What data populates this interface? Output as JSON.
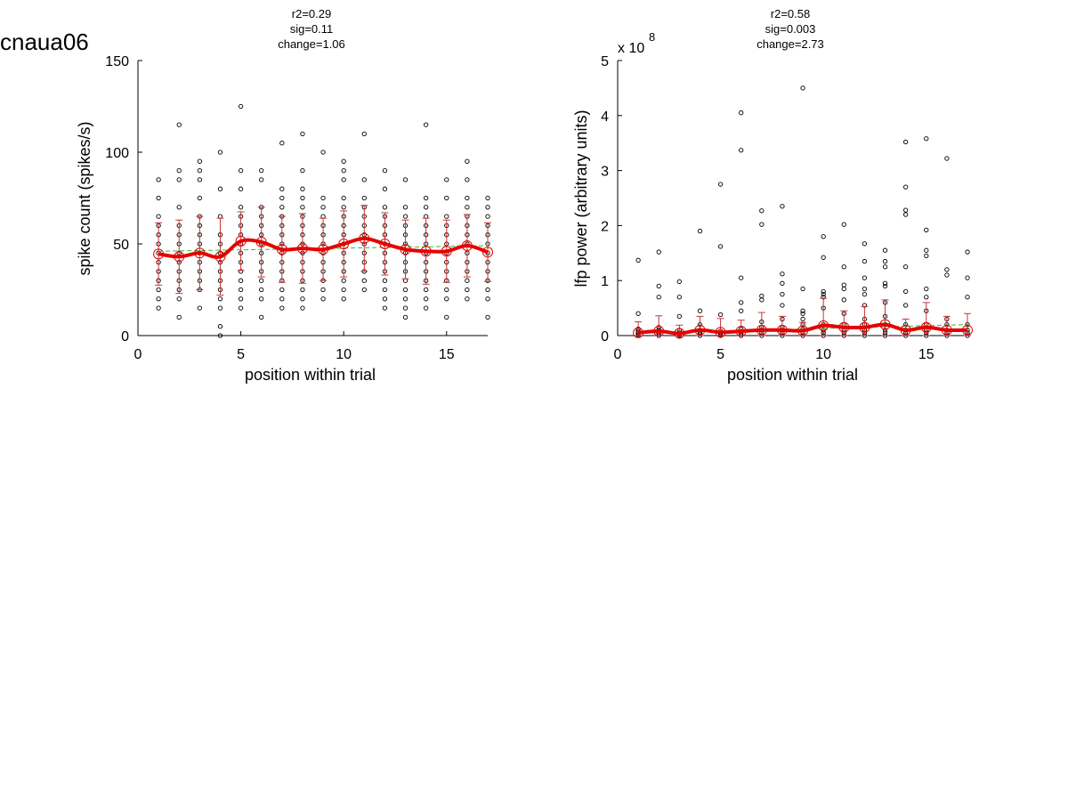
{
  "figure_label": "cnaua06",
  "chart_data": [
    {
      "type": "scatter",
      "title_lines": [
        "r2=0.29",
        "sig=0.11",
        "change=1.06"
      ],
      "xlabel": "position within trial",
      "ylabel": "spike count (spikes/s)",
      "xlim": [
        0,
        17
      ],
      "ylim": [
        0,
        150
      ],
      "xticks": [
        0,
        5,
        10,
        15
      ],
      "yticks": [
        0,
        50,
        100,
        150
      ],
      "grid": false,
      "exponent_label": "",
      "raw_points": [
        {
          "x": 1,
          "y": [
            15,
            20,
            25,
            30,
            35,
            40,
            45,
            50,
            55,
            60,
            65,
            75,
            85
          ]
        },
        {
          "x": 2,
          "y": [
            10,
            20,
            25,
            30,
            35,
            40,
            45,
            50,
            55,
            60,
            70,
            85,
            90,
            115
          ]
        },
        {
          "x": 3,
          "y": [
            15,
            25,
            30,
            35,
            40,
            45,
            50,
            55,
            60,
            65,
            75,
            85,
            90,
            95
          ]
        },
        {
          "x": 4,
          "y": [
            0,
            5,
            15,
            20,
            25,
            30,
            35,
            40,
            45,
            50,
            55,
            65,
            80,
            100
          ]
        },
        {
          "x": 5,
          "y": [
            15,
            20,
            25,
            30,
            35,
            40,
            45,
            50,
            55,
            60,
            65,
            70,
            80,
            90,
            125
          ]
        },
        {
          "x": 6,
          "y": [
            10,
            20,
            25,
            30,
            35,
            40,
            45,
            50,
            55,
            60,
            65,
            70,
            85,
            90
          ]
        },
        {
          "x": 7,
          "y": [
            15,
            20,
            25,
            30,
            35,
            40,
            45,
            50,
            55,
            60,
            65,
            70,
            75,
            80,
            105
          ]
        },
        {
          "x": 8,
          "y": [
            15,
            20,
            25,
            30,
            35,
            40,
            45,
            50,
            55,
            60,
            65,
            70,
            75,
            80,
            90,
            110
          ]
        },
        {
          "x": 9,
          "y": [
            20,
            25,
            30,
            35,
            40,
            45,
            50,
            55,
            60,
            65,
            70,
            75,
            100
          ]
        },
        {
          "x": 10,
          "y": [
            20,
            25,
            30,
            35,
            40,
            45,
            50,
            55,
            60,
            65,
            70,
            75,
            85,
            90,
            95
          ]
        },
        {
          "x": 11,
          "y": [
            25,
            30,
            35,
            40,
            45,
            50,
            55,
            60,
            65,
            70,
            75,
            85,
            110
          ]
        },
        {
          "x": 12,
          "y": [
            15,
            20,
            25,
            30,
            35,
            40,
            45,
            50,
            55,
            60,
            65,
            70,
            80,
            90
          ]
        },
        {
          "x": 13,
          "y": [
            10,
            15,
            20,
            25,
            30,
            35,
            40,
            45,
            50,
            55,
            60,
            65,
            70,
            85
          ]
        },
        {
          "x": 14,
          "y": [
            15,
            20,
            25,
            30,
            35,
            40,
            45,
            50,
            55,
            60,
            65,
            70,
            75,
            115
          ]
        },
        {
          "x": 15,
          "y": [
            10,
            20,
            25,
            30,
            35,
            40,
            45,
            50,
            55,
            60,
            65,
            75,
            85
          ]
        },
        {
          "x": 16,
          "y": [
            20,
            25,
            30,
            35,
            40,
            45,
            50,
            55,
            60,
            65,
            70,
            75,
            85,
            95
          ]
        },
        {
          "x": 17,
          "y": [
            10,
            20,
            25,
            30,
            35,
            40,
            45,
            50,
            55,
            60,
            65,
            70,
            75
          ]
        }
      ],
      "means": {
        "x": [
          1,
          2,
          3,
          4,
          5,
          6,
          7,
          8,
          9,
          10,
          11,
          12,
          13,
          14,
          15,
          16,
          17
        ],
        "y": [
          44.5,
          43,
          45,
          43,
          51.5,
          51,
          47,
          47.5,
          47,
          50,
          53,
          50,
          47,
          46,
          46,
          49,
          45.5
        ],
        "err": [
          17,
          20,
          20,
          21,
          16,
          19,
          18,
          19,
          17,
          18,
          18,
          17,
          16,
          18,
          17,
          17,
          16
        ]
      },
      "fit_line": {
        "x": [
          1,
          17
        ],
        "y": [
          46,
          49
        ]
      },
      "colors": {
        "points": "#000000",
        "mean": "#e60000",
        "error": "#cc3333",
        "fit": "#33bb33",
        "axis": "#000000"
      }
    },
    {
      "type": "scatter",
      "title_lines": [
        "r2=0.58",
        "sig=0.003",
        "change=2.73"
      ],
      "xlabel": "position within trial",
      "ylabel": "lfp power (arbitrary units)",
      "xlim": [
        0,
        17
      ],
      "ylim": [
        0,
        5
      ],
      "xticks": [
        0,
        5,
        10,
        15
      ],
      "yticks": [
        0,
        1,
        2,
        3,
        4,
        5
      ],
      "grid": false,
      "exponent_label": "x 10",
      "exponent_power": "8",
      "raw_points": [
        {
          "x": 1,
          "y": [
            0,
            0.02,
            0.05,
            0.08,
            0.12,
            0.4,
            1.37
          ]
        },
        {
          "x": 2,
          "y": [
            0,
            0.03,
            0.06,
            0.1,
            0.15,
            0.7,
            0.9,
            1.52
          ]
        },
        {
          "x": 3,
          "y": [
            0,
            0.02,
            0.05,
            0.1,
            0.35,
            0.7,
            0.98
          ]
        },
        {
          "x": 4,
          "y": [
            0,
            0.03,
            0.06,
            0.1,
            0.2,
            0.45,
            1.9
          ]
        },
        {
          "x": 5,
          "y": [
            0,
            0.02,
            0.05,
            0.08,
            0.38,
            1.62,
            2.75
          ]
        },
        {
          "x": 6,
          "y": [
            0,
            0.03,
            0.07,
            0.12,
            0.45,
            0.6,
            1.05,
            3.37,
            4.05
          ]
        },
        {
          "x": 7,
          "y": [
            0,
            0.05,
            0.1,
            0.15,
            0.25,
            0.65,
            0.72,
            2.02,
            2.27
          ]
        },
        {
          "x": 8,
          "y": [
            0,
            0.05,
            0.1,
            0.15,
            0.3,
            0.55,
            0.75,
            0.95,
            1.12,
            2.35
          ]
        },
        {
          "x": 9,
          "y": [
            0,
            0.05,
            0.12,
            0.2,
            0.3,
            0.4,
            0.45,
            0.85,
            4.5
          ]
        },
        {
          "x": 10,
          "y": [
            0,
            0.05,
            0.1,
            0.2,
            0.5,
            0.7,
            0.75,
            0.8,
            1.42,
            1.8
          ]
        },
        {
          "x": 11,
          "y": [
            0,
            0.05,
            0.1,
            0.2,
            0.4,
            0.65,
            0.85,
            0.92,
            1.25,
            2.02
          ]
        },
        {
          "x": 12,
          "y": [
            0,
            0.05,
            0.1,
            0.2,
            0.3,
            0.55,
            0.75,
            0.85,
            1.05,
            1.35,
            1.67
          ]
        },
        {
          "x": 13,
          "y": [
            0,
            0.05,
            0.1,
            0.2,
            0.35,
            0.6,
            0.9,
            0.95,
            1.25,
            1.35,
            1.55
          ]
        },
        {
          "x": 14,
          "y": [
            0,
            0.05,
            0.1,
            0.2,
            0.55,
            0.8,
            1.25,
            2.2,
            2.28,
            2.7,
            3.52
          ]
        },
        {
          "x": 15,
          "y": [
            0,
            0.05,
            0.1,
            0.2,
            0.45,
            0.7,
            0.85,
            1.45,
            1.55,
            1.92,
            3.58
          ]
        },
        {
          "x": 16,
          "y": [
            0,
            0.05,
            0.1,
            0.2,
            0.3,
            1.1,
            1.2,
            3.22
          ]
        },
        {
          "x": 17,
          "y": [
            0,
            0.05,
            0.1,
            0.2,
            0.7,
            1.05,
            1.52
          ]
        }
      ],
      "means": {
        "x": [
          1,
          2,
          3,
          4,
          5,
          6,
          7,
          8,
          9,
          10,
          11,
          12,
          13,
          14,
          15,
          16,
          17
        ],
        "y": [
          0.05,
          0.08,
          0.04,
          0.1,
          0.06,
          0.08,
          0.1,
          0.1,
          0.09,
          0.18,
          0.15,
          0.15,
          0.2,
          0.1,
          0.15,
          0.1,
          0.1
        ],
        "err": [
          0.2,
          0.28,
          0.15,
          0.25,
          0.25,
          0.2,
          0.32,
          0.25,
          0.15,
          0.5,
          0.3,
          0.38,
          0.45,
          0.2,
          0.45,
          0.25,
          0.3
        ]
      },
      "fit_line": {
        "x": [
          1,
          17
        ],
        "y": [
          0.04,
          0.2
        ]
      },
      "colors": {
        "points": "#000000",
        "mean": "#e60000",
        "error": "#cc3333",
        "fit": "#33bb33",
        "axis": "#000000"
      }
    }
  ]
}
